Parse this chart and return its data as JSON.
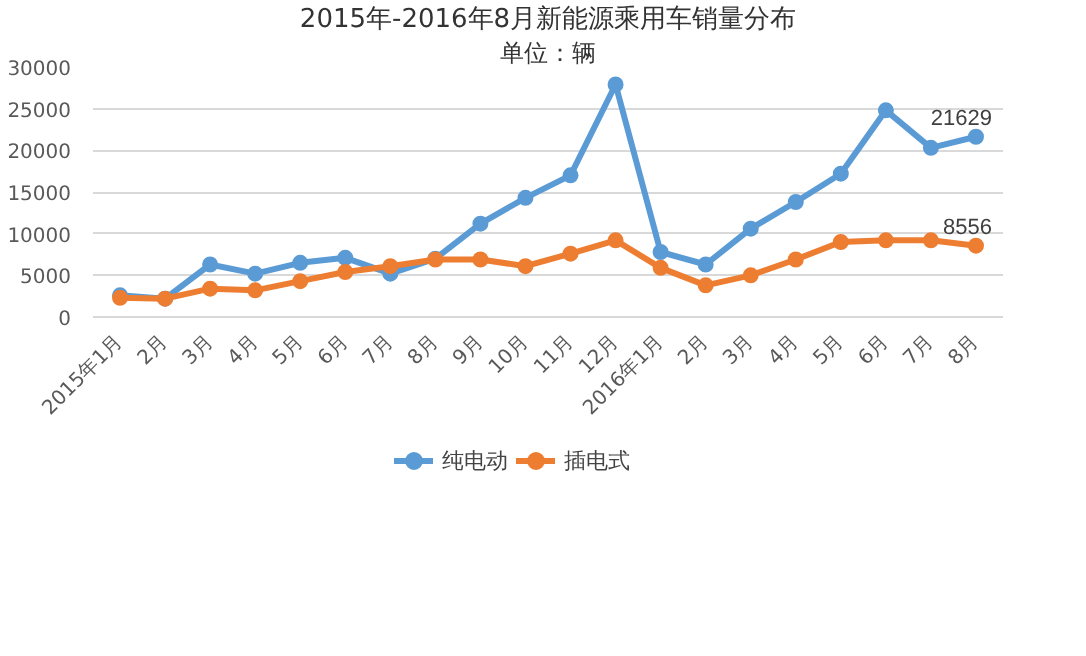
{
  "chart_data": {
    "type": "line",
    "title": "2015年-2016年8月新能源乘用车销量分布",
    "subtitle": "单位：辆",
    "categories": [
      "2015年1月",
      "2月",
      "3月",
      "4月",
      "5月",
      "6月",
      "7月",
      "8月",
      "9月",
      "10月",
      "11月",
      "12月",
      "2016年1月",
      "2月",
      "3月",
      "4月",
      "5月",
      "6月",
      "7月",
      "8月"
    ],
    "series": [
      {
        "name": "纯电动",
        "color": "#5b9bd5",
        "values": [
          2600,
          2200,
          6300,
          5200,
          6500,
          7100,
          5200,
          7000,
          11200,
          14300,
          17000,
          27900,
          7800,
          6300,
          10600,
          13800,
          17200,
          24800,
          20300,
          21629
        ],
        "value_labels": [
          null,
          null,
          null,
          null,
          null,
          null,
          null,
          null,
          null,
          null,
          null,
          null,
          null,
          null,
          null,
          null,
          null,
          null,
          null,
          "21629"
        ]
      },
      {
        "name": "插电式",
        "color": "#ed7d31",
        "values": [
          2300,
          2200,
          3400,
          3200,
          4300,
          5400,
          6100,
          6900,
          6900,
          6100,
          7600,
          9200,
          5900,
          3800,
          5000,
          6900,
          9000,
          9200,
          9200,
          8556
        ],
        "value_labels": [
          null,
          null,
          null,
          null,
          null,
          null,
          null,
          null,
          null,
          null,
          null,
          null,
          null,
          null,
          null,
          null,
          null,
          null,
          null,
          "8556"
        ]
      }
    ],
    "ylim": [
      0,
      30000
    ],
    "yticks": [
      0,
      5000,
      10000,
      15000,
      20000,
      25000,
      30000
    ],
    "grid": "y",
    "legend": "bottom",
    "marker": "circle",
    "line_style": "solid"
  }
}
